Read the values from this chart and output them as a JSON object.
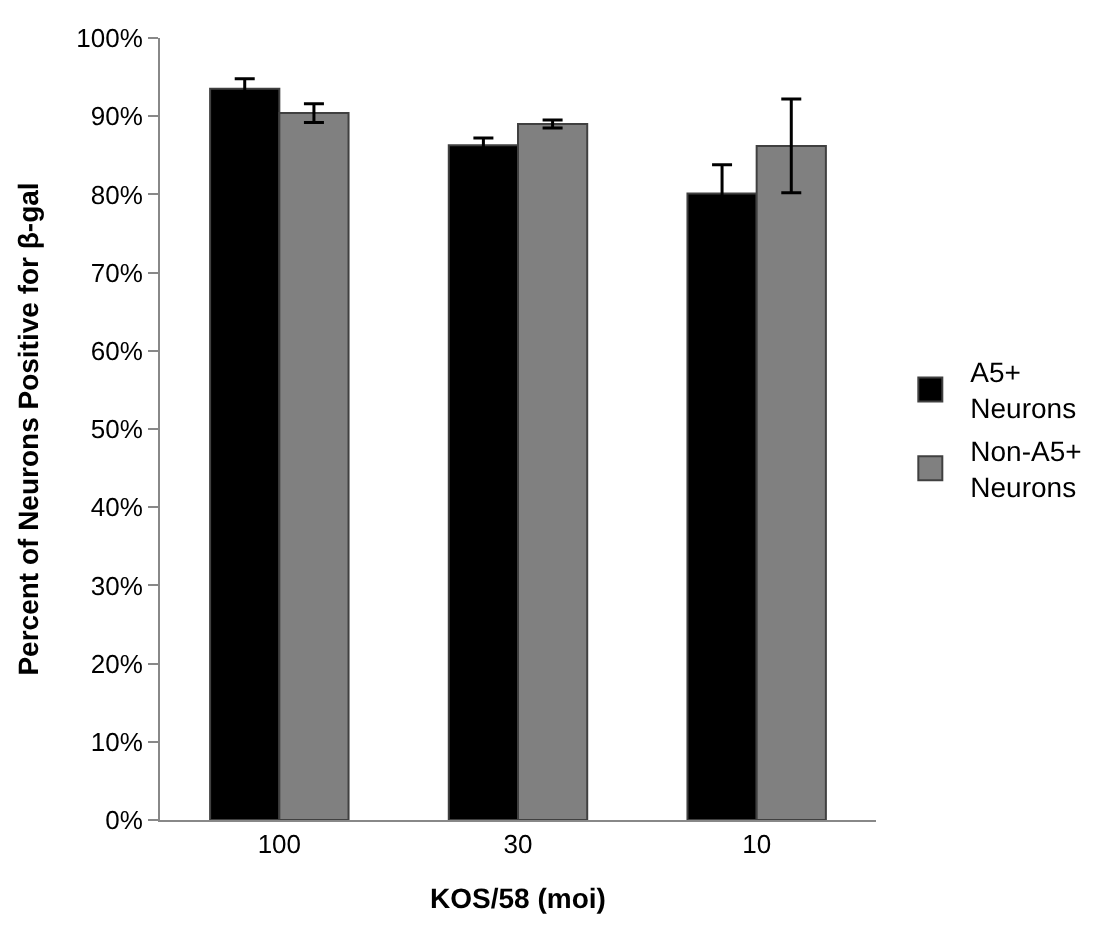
{
  "chart_data": {
    "type": "bar",
    "xlabel": "KOS/58 (moi)",
    "ylabel": "Percent of Neurons Positive for β-gal",
    "categories": [
      "100",
      "30",
      "10"
    ],
    "series": [
      {
        "name": "A5+ Neurons",
        "color": "#000000",
        "values": [
          93.5,
          86.3,
          80.1
        ],
        "errors": [
          1.3,
          0.9,
          3.7
        ]
      },
      {
        "name": "Non-A5+ Neurons",
        "color": "#808080",
        "values": [
          90.4,
          89.0,
          86.2
        ],
        "errors": [
          1.2,
          0.5,
          6.0
        ]
      }
    ],
    "ylim": [
      0,
      100
    ],
    "yticks": [
      {
        "value": 0,
        "label": "0%"
      },
      {
        "value": 10,
        "label": "10%"
      },
      {
        "value": 20,
        "label": "20%"
      },
      {
        "value": 30,
        "label": "30%"
      },
      {
        "value": 40,
        "label": "40%"
      },
      {
        "value": 50,
        "label": "50%"
      },
      {
        "value": 60,
        "label": "60%"
      },
      {
        "value": 70,
        "label": "70%"
      },
      {
        "value": 80,
        "label": "80%"
      },
      {
        "value": 90,
        "label": "90%"
      },
      {
        "value": 100,
        "label": "100%"
      }
    ],
    "legend": "right"
  }
}
